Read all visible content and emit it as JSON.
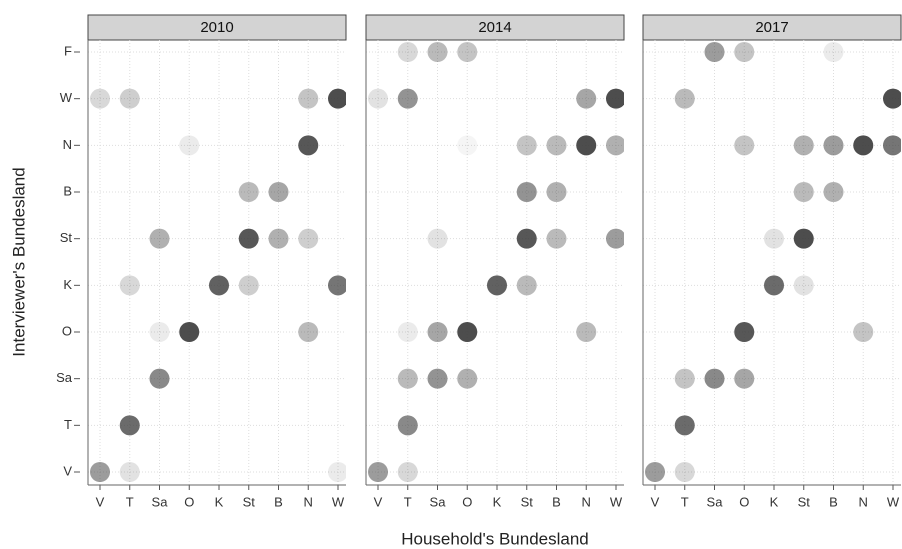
{
  "chart_data": {
    "type": "dot-matrix",
    "x_label": "Household's Bundesland",
    "y_label": "Interviewer's Bundesland",
    "x_categories": [
      "V",
      "T",
      "Sa",
      "O",
      "K",
      "St",
      "B",
      "N",
      "W"
    ],
    "y_categories": [
      "V",
      "T",
      "Sa",
      "O",
      "K",
      "St",
      "B",
      "N",
      "W",
      "F"
    ],
    "color": "#3a3a3a",
    "grid": true,
    "panels": [
      {
        "title": "2010",
        "points": [
          {
            "x": "V",
            "y": "W",
            "value": 0.2
          },
          {
            "x": "T",
            "y": "W",
            "value": 0.25
          },
          {
            "x": "N",
            "y": "W",
            "value": 0.3
          },
          {
            "x": "W",
            "y": "W",
            "value": 0.9
          },
          {
            "x": "O",
            "y": "N",
            "value": 0.1
          },
          {
            "x": "N",
            "y": "N",
            "value": 0.85
          },
          {
            "x": "St",
            "y": "B",
            "value": 0.35
          },
          {
            "x": "B",
            "y": "B",
            "value": 0.45
          },
          {
            "x": "Sa",
            "y": "St",
            "value": 0.4
          },
          {
            "x": "St",
            "y": "St",
            "value": 0.85
          },
          {
            "x": "B",
            "y": "St",
            "value": 0.4
          },
          {
            "x": "N",
            "y": "St",
            "value": 0.25
          },
          {
            "x": "T",
            "y": "K",
            "value": 0.2
          },
          {
            "x": "K",
            "y": "K",
            "value": 0.8
          },
          {
            "x": "St",
            "y": "K",
            "value": 0.25
          },
          {
            "x": "W",
            "y": "K",
            "value": 0.7
          },
          {
            "x": "Sa",
            "y": "O",
            "value": 0.1
          },
          {
            "x": "O",
            "y": "O",
            "value": 0.9
          },
          {
            "x": "N",
            "y": "O",
            "value": 0.35
          },
          {
            "x": "Sa",
            "y": "Sa",
            "value": 0.6
          },
          {
            "x": "T",
            "y": "T",
            "value": 0.75
          },
          {
            "x": "V",
            "y": "V",
            "value": 0.5
          },
          {
            "x": "T",
            "y": "V",
            "value": 0.15
          },
          {
            "x": "W",
            "y": "V",
            "value": 0.1
          }
        ]
      },
      {
        "title": "2014",
        "points": [
          {
            "x": "T",
            "y": "F",
            "value": 0.2
          },
          {
            "x": "Sa",
            "y": "F",
            "value": 0.35
          },
          {
            "x": "O",
            "y": "F",
            "value": 0.3
          },
          {
            "x": "V",
            "y": "W",
            "value": 0.15
          },
          {
            "x": "T",
            "y": "W",
            "value": 0.55
          },
          {
            "x": "N",
            "y": "W",
            "value": 0.45
          },
          {
            "x": "W",
            "y": "W",
            "value": 0.9
          },
          {
            "x": "O",
            "y": "N",
            "value": 0.05
          },
          {
            "x": "St",
            "y": "N",
            "value": 0.3
          },
          {
            "x": "B",
            "y": "N",
            "value": 0.35
          },
          {
            "x": "N",
            "y": "N",
            "value": 0.9
          },
          {
            "x": "W",
            "y": "N",
            "value": 0.4
          },
          {
            "x": "St",
            "y": "B",
            "value": 0.55
          },
          {
            "x": "B",
            "y": "B",
            "value": 0.4
          },
          {
            "x": "Sa",
            "y": "St",
            "value": 0.15
          },
          {
            "x": "St",
            "y": "St",
            "value": 0.85
          },
          {
            "x": "B",
            "y": "St",
            "value": 0.35
          },
          {
            "x": "W",
            "y": "St",
            "value": 0.5
          },
          {
            "x": "K",
            "y": "K",
            "value": 0.8
          },
          {
            "x": "St",
            "y": "K",
            "value": 0.35
          },
          {
            "x": "T",
            "y": "O",
            "value": 0.1
          },
          {
            "x": "Sa",
            "y": "O",
            "value": 0.45
          },
          {
            "x": "O",
            "y": "O",
            "value": 0.9
          },
          {
            "x": "N",
            "y": "O",
            "value": 0.35
          },
          {
            "x": "T",
            "y": "Sa",
            "value": 0.35
          },
          {
            "x": "Sa",
            "y": "Sa",
            "value": 0.55
          },
          {
            "x": "O",
            "y": "Sa",
            "value": 0.4
          },
          {
            "x": "T",
            "y": "T",
            "value": 0.6
          },
          {
            "x": "V",
            "y": "V",
            "value": 0.5
          },
          {
            "x": "T",
            "y": "V",
            "value": 0.2
          }
        ]
      },
      {
        "title": "2017",
        "points": [
          {
            "x": "Sa",
            "y": "F",
            "value": 0.5
          },
          {
            "x": "O",
            "y": "F",
            "value": 0.3
          },
          {
            "x": "B",
            "y": "F",
            "value": 0.1
          },
          {
            "x": "T",
            "y": "W",
            "value": 0.35
          },
          {
            "x": "W",
            "y": "W",
            "value": 0.9
          },
          {
            "x": "O",
            "y": "N",
            "value": 0.3
          },
          {
            "x": "St",
            "y": "N",
            "value": 0.4
          },
          {
            "x": "B",
            "y": "N",
            "value": 0.5
          },
          {
            "x": "N",
            "y": "N",
            "value": 0.9
          },
          {
            "x": "W",
            "y": "N",
            "value": 0.7
          },
          {
            "x": "St",
            "y": "B",
            "value": 0.35
          },
          {
            "x": "B",
            "y": "B",
            "value": 0.4
          },
          {
            "x": "K",
            "y": "St",
            "value": 0.15
          },
          {
            "x": "St",
            "y": "St",
            "value": 0.9
          },
          {
            "x": "K",
            "y": "K",
            "value": 0.75
          },
          {
            "x": "St",
            "y": "K",
            "value": 0.15
          },
          {
            "x": "O",
            "y": "O",
            "value": 0.85
          },
          {
            "x": "N",
            "y": "O",
            "value": 0.3
          },
          {
            "x": "T",
            "y": "Sa",
            "value": 0.3
          },
          {
            "x": "Sa",
            "y": "Sa",
            "value": 0.6
          },
          {
            "x": "O",
            "y": "Sa",
            "value": 0.45
          },
          {
            "x": "T",
            "y": "T",
            "value": 0.75
          },
          {
            "x": "V",
            "y": "V",
            "value": 0.5
          },
          {
            "x": "T",
            "y": "V",
            "value": 0.2
          }
        ]
      }
    ]
  }
}
